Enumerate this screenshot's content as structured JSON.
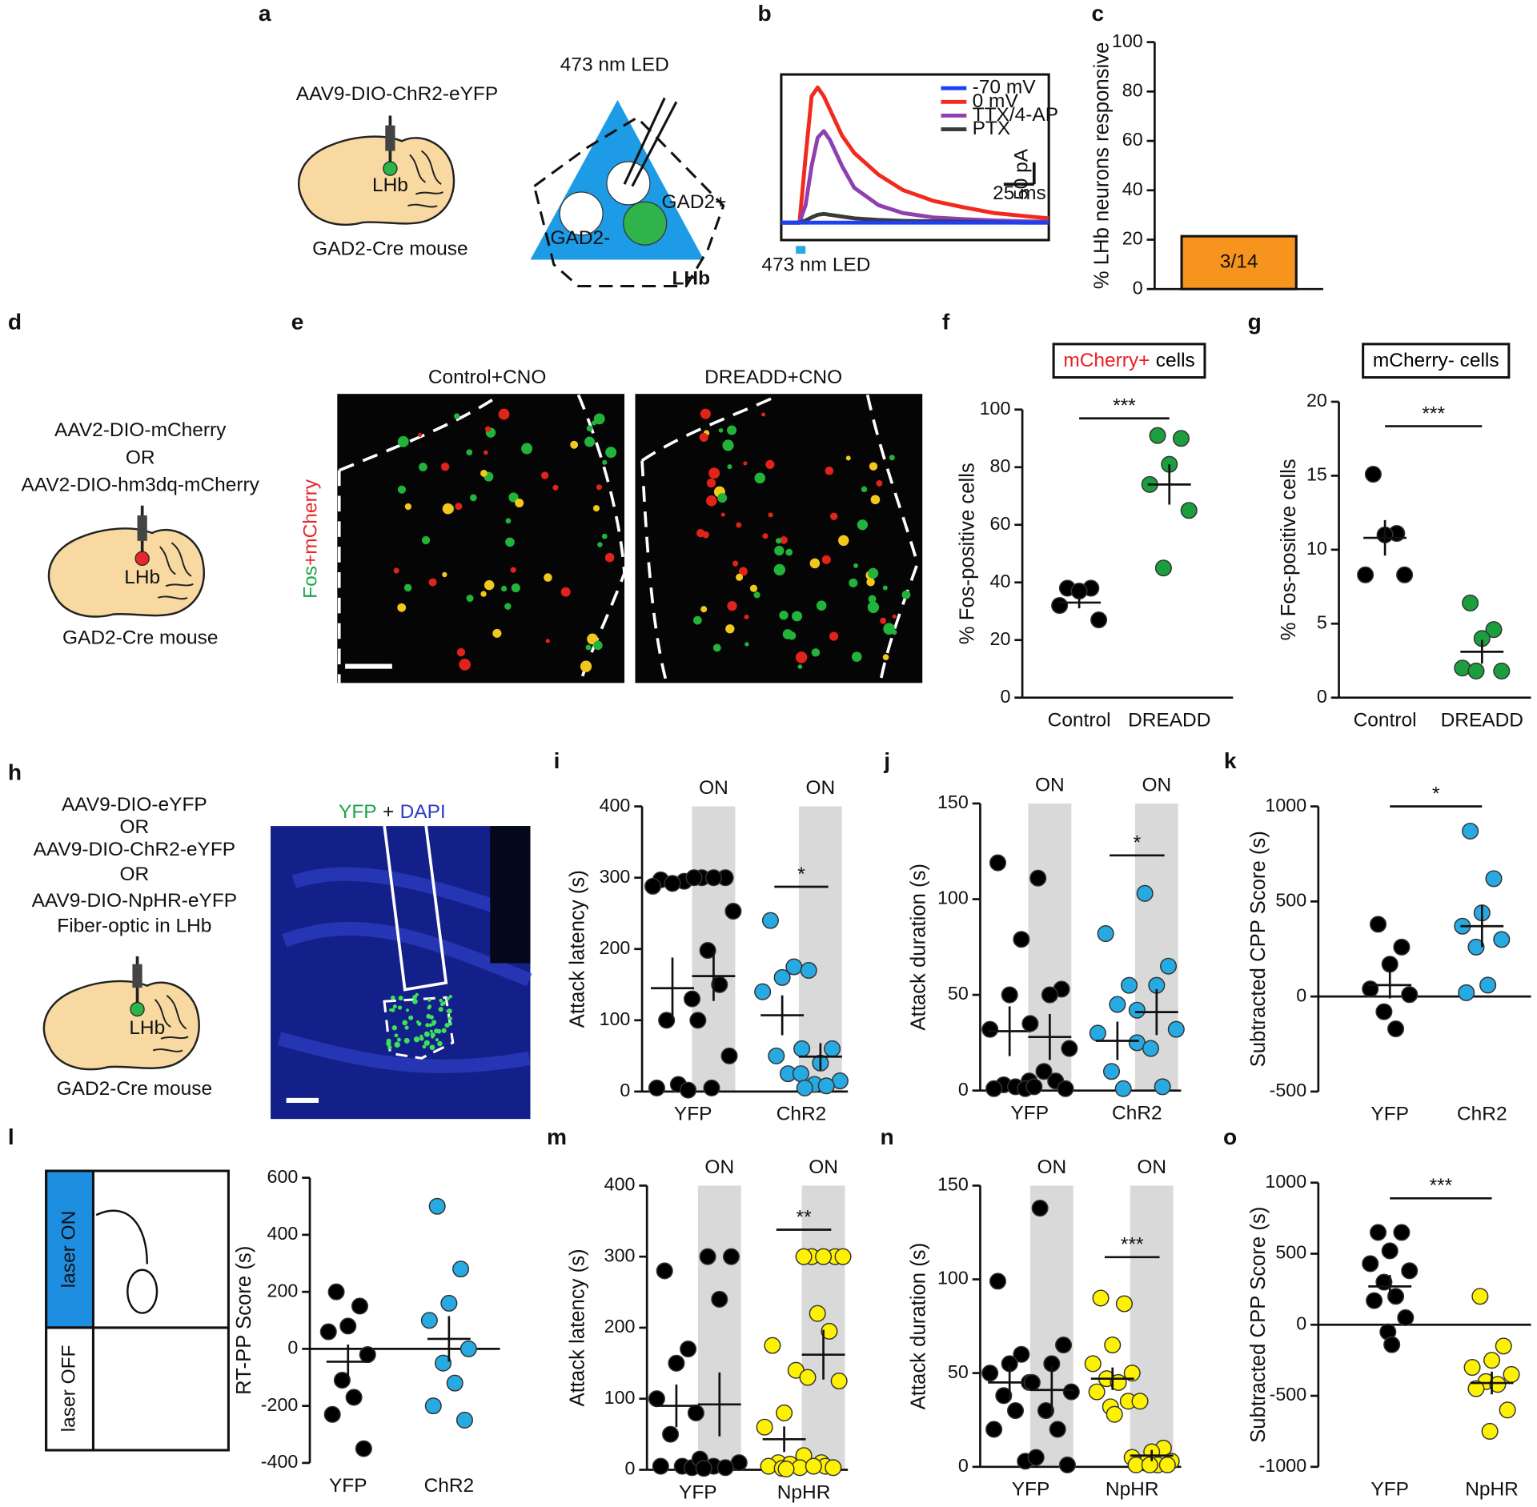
{
  "diagrams": {
    "a": {
      "panel": "a",
      "virus": "AAV9-DIO-ChR2-eYFP",
      "region": "LHb",
      "mouse": "GAD2-Cre mouse",
      "led": "473 nm LED",
      "cell_neg": "GAD2-",
      "cell_pos": "GAD2+",
      "area": "LHb"
    },
    "d": {
      "panel": "d",
      "virus": [
        "AAV2-DIO-mCherry",
        "OR",
        "AAV2-DIO-hm3dq-mCherry"
      ],
      "region": "LHb",
      "mouse": "GAD2-Cre mouse"
    },
    "e": {
      "panel": "e",
      "stain": [
        "Fos",
        "+mCherry"
      ],
      "conditions": [
        "Control+CNO",
        "DREADD+CNO"
      ]
    },
    "h": {
      "panel": "h",
      "virus": [
        "AAV9-DIO-eYFP",
        "OR",
        "AAV9-DIO-ChR2-eYFP",
        "OR",
        "AAV9-DIO-NpHR-eYFP"
      ],
      "fiber": "Fiber-optic in LHb",
      "region": "LHb",
      "mouse": "GAD2-Cre mouse",
      "stain": [
        "YFP",
        "+",
        "DAPI"
      ]
    },
    "l": {
      "on": "laser ON",
      "off": "laser OFF"
    }
  },
  "chart_data": [
    {
      "type": "line",
      "panel": "b",
      "x": [
        0,
        10,
        15,
        20,
        25,
        30,
        35,
        40,
        50,
        60,
        80,
        100,
        125,
        150,
        175,
        200,
        220
      ],
      "xlim": [
        0,
        220
      ],
      "ylim": [
        -40,
        340
      ],
      "legend": "upper right",
      "series": [
        {
          "name": "-70 mV",
          "color": "#1f3ff5",
          "values": [
            0,
            0,
            0,
            0,
            0,
            0,
            0,
            0,
            0,
            0,
            0,
            0,
            0,
            0,
            0,
            0,
            0
          ]
        },
        {
          "name": "0 mV",
          "color": "#f22a1e",
          "values": [
            0,
            0,
            0,
            150,
            290,
            310,
            290,
            260,
            200,
            160,
            110,
            75,
            50,
            35,
            22,
            15,
            10
          ]
        },
        {
          "name": "TTX/4-AP",
          "color": "#8e3fb0",
          "values": [
            0,
            0,
            0,
            40,
            130,
            195,
            210,
            190,
            130,
            80,
            40,
            22,
            12,
            8,
            5,
            3,
            2
          ]
        },
        {
          "name": "PTX",
          "color": "#3a3a3a",
          "values": [
            0,
            0,
            0,
            5,
            12,
            18,
            20,
            18,
            14,
            10,
            6,
            4,
            3,
            2,
            1,
            0,
            0
          ]
        }
      ],
      "scale_bar": {
        "y": {
          "value": 50,
          "label": "50 pA"
        },
        "x": {
          "value": 25,
          "label": "25 ms"
        }
      },
      "led": {
        "label": "473 nm LED",
        "x": [
          12,
          20
        ],
        "color": "#29abe2"
      }
    },
    {
      "type": "bar",
      "panel": "c",
      "ylabel": "% LHb neurons responsive",
      "ylim": [
        0,
        100
      ],
      "yticks": [
        0,
        20,
        40,
        60,
        80,
        100
      ],
      "categories": [
        null
      ],
      "values": [
        21.4
      ],
      "value_labels": [
        "3/14"
      ],
      "color": "#f7941d"
    },
    {
      "type": "dot",
      "panel": "f",
      "title": [
        "mCherry+",
        "cells"
      ],
      "title_colors": [
        "#ee1c24",
        "#000000"
      ],
      "ylabel": "% Fos-positive cells",
      "ylim": [
        0,
        100
      ],
      "yticks": [
        0,
        20,
        40,
        60,
        80,
        100
      ],
      "significance": "***",
      "categories": [
        {
          "label": "Control",
          "groups": [
            {
              "color": "#000000",
              "values": [
                38,
                38,
                37,
                32,
                27
              ],
              "mean": 33,
              "sem": 2
            }
          ]
        },
        {
          "label": "DREADD",
          "groups": [
            {
              "color": "#1b9e3e",
              "values": [
                91,
                90,
                81,
                74,
                65,
                45
              ],
              "mean": 74,
              "sem": 7
            }
          ]
        }
      ]
    },
    {
      "type": "dot",
      "panel": "g",
      "title": [
        "mCherry- cells"
      ],
      "title_colors": [
        "#000000"
      ],
      "ylabel": "% Fos-positive cells",
      "ylim": [
        0,
        20
      ],
      "yticks": [
        0,
        5,
        10,
        15,
        20
      ],
      "significance": "***",
      "categories": [
        {
          "label": "Control",
          "groups": [
            {
              "color": "#000000",
              "values": [
                15.1,
                11.1,
                11.0,
                8.3,
                8.3
              ],
              "mean": 10.8,
              "sem": 1.2
            }
          ]
        },
        {
          "label": "DREADD",
          "groups": [
            {
              "color": "#1b9e3e",
              "values": [
                6.4,
                4.6,
                4.0,
                2.0,
                1.8,
                1.8
              ],
              "mean": 3.1,
              "sem": 0.8
            }
          ]
        }
      ]
    },
    {
      "type": "dot",
      "panel": "i",
      "ylabel": "Attack latency (s)",
      "ylim": [
        0,
        400
      ],
      "yticks": [
        0,
        100,
        200,
        300,
        400
      ],
      "categories": [
        {
          "label": "YFP",
          "groups": [
            {
              "color": "#000000",
              "values": [
                297,
                295,
                292,
                288,
                130,
                100,
                10,
                5,
                2
              ],
              "mean": 145,
              "sem": 43
            },
            {
              "color": "#000000",
              "label": "ON",
              "shaded": true,
              "values": [
                300,
                300,
                300,
                300,
                253,
                198,
                150,
                100,
                50,
                5
              ],
              "mean": 162,
              "sem": 35
            }
          ]
        },
        {
          "label": "ChR2",
          "significance": "*",
          "groups": [
            {
              "color": "#27a9e1",
              "values": [
                240,
                175,
                160,
                140,
                60,
                50,
                25
              ],
              "mean": 107,
              "sem": 28
            },
            {
              "color": "#27a9e1",
              "label": "ON",
              "shaded": true,
              "values": [
                170,
                60,
                40,
                25,
                15,
                10,
                8,
                5
              ],
              "mean": 49,
              "sem": 19
            }
          ]
        }
      ]
    },
    {
      "type": "dot",
      "panel": "j",
      "ylabel": "Attack duration (s)",
      "ylim": [
        0,
        150
      ],
      "yticks": [
        0,
        50,
        100,
        150
      ],
      "categories": [
        {
          "label": "YFP",
          "groups": [
            {
              "color": "#000000",
              "values": [
                119,
                79,
                50,
                32,
                5,
                3,
                2,
                1,
                1
              ],
              "mean": 31,
              "sem": 13
            },
            {
              "color": "#000000",
              "label": "ON",
              "shaded": true,
              "values": [
                111,
                53,
                50,
                35,
                22,
                10,
                5,
                2,
                1
              ],
              "mean": 28,
              "sem": 12
            }
          ]
        },
        {
          "label": "ChR2",
          "significance": "*",
          "groups": [
            {
              "color": "#27a9e1",
              "values": [
                82,
                55,
                45,
                30,
                25,
                10,
                1
              ],
              "mean": 26,
              "sem": 10
            },
            {
              "color": "#27a9e1",
              "label": "ON",
              "shaded": true,
              "values": [
                103,
                65,
                55,
                42,
                32,
                22,
                2
              ],
              "mean": 41,
              "sem": 12
            }
          ]
        }
      ]
    },
    {
      "type": "dot",
      "panel": "k",
      "ylabel": "Subtracted CPP Score (s)",
      "ylim": [
        -500,
        1000
      ],
      "yticks": [
        -500,
        0,
        500,
        1000
      ],
      "zero_line": true,
      "significance": "*",
      "categories": [
        {
          "label": "YFP",
          "groups": [
            {
              "color": "#000000",
              "values": [
                380,
                260,
                170,
                40,
                10,
                -80,
                -170
              ],
              "mean": 60,
              "sem": 70
            }
          ]
        },
        {
          "label": "ChR2",
          "groups": [
            {
              "color": "#27a9e1",
              "values": [
                870,
                620,
                440,
                370,
                300,
                260,
                60,
                20
              ],
              "mean": 370,
              "sem": 110
            }
          ]
        }
      ]
    },
    {
      "type": "dot",
      "panel": "l",
      "ylabel": "RT-PP Score (s)",
      "ylim": [
        -400,
        600
      ],
      "yticks": [
        -400,
        -200,
        0,
        200,
        400,
        600
      ],
      "zero_line": true,
      "categories": [
        {
          "label": "YFP",
          "groups": [
            {
              "color": "#000000",
              "values": [
                200,
                150,
                80,
                60,
                -20,
                -110,
                -170,
                -230,
                -350
              ],
              "mean": -45,
              "sem": 60
            }
          ]
        },
        {
          "label": "ChR2",
          "groups": [
            {
              "color": "#27a9e1",
              "values": [
                500,
                280,
                160,
                100,
                0,
                -50,
                -120,
                -200,
                -250
              ],
              "mean": 35,
              "sem": 80
            }
          ]
        }
      ]
    },
    {
      "type": "dot",
      "panel": "m",
      "ylabel": "Attack latency (s)",
      "ylim": [
        0,
        400
      ],
      "yticks": [
        0,
        100,
        200,
        300,
        400
      ],
      "categories": [
        {
          "label": "YFP",
          "groups": [
            {
              "color": "#000000",
              "values": [
                280,
                170,
                150,
                100,
                80,
                50,
                5,
                5,
                3
              ],
              "mean": 90,
              "sem": 30
            },
            {
              "color": "#000000",
              "label": "ON",
              "shaded": true,
              "values": [
                300,
                300,
                240,
                15,
                10,
                5,
                3,
                2
              ],
              "mean": 92,
              "sem": 45
            }
          ]
        },
        {
          "label": "NpHR",
          "significance": "**",
          "groups": [
            {
              "color": "#fff200",
              "values": [
                175,
                140,
                80,
                60,
                20,
                10,
                8,
                5,
                3,
                2,
                1
              ],
              "mean": 43,
              "sem": 18
            },
            {
              "color": "#fff200",
              "label": "ON",
              "shaded": true,
              "values": [
                300,
                300,
                300,
                300,
                300,
                220,
                195,
                130,
                125,
                10,
                5,
                5,
                3
              ],
              "mean": 162,
              "sem": 35
            }
          ]
        }
      ]
    },
    {
      "type": "dot",
      "panel": "n",
      "ylabel": "Attack duration (s)",
      "ylim": [
        0,
        150
      ],
      "yticks": [
        0,
        50,
        100,
        150
      ],
      "categories": [
        {
          "label": "YFP",
          "groups": [
            {
              "color": "#000000",
              "values": [
                99,
                60,
                55,
                50,
                45,
                38,
                30,
                20,
                3
              ],
              "mean": 45,
              "sem": 9
            },
            {
              "color": "#000000",
              "label": "ON",
              "shaded": true,
              "values": [
                138,
                65,
                55,
                45,
                40,
                30,
                20,
                5,
                1
              ],
              "mean": 41,
              "sem": 13
            }
          ]
        },
        {
          "label": "NpHR",
          "significance": "***",
          "groups": [
            {
              "color": "#fff200",
              "values": [
                90,
                87,
                65,
                55,
                50,
                47,
                45,
                40,
                35,
                32,
                28
              ],
              "mean": 47,
              "sem": 6
            },
            {
              "color": "#fff200",
              "label": "ON",
              "shaded": true,
              "values": [
                35,
                10,
                8,
                5,
                3,
                2,
                1,
                1,
                1,
                1
              ],
              "mean": 6,
              "sem": 3
            }
          ]
        }
      ]
    },
    {
      "type": "dot",
      "panel": "o",
      "ylabel": "Subtracted CPP Score (s)",
      "ylim": [
        -1000,
        1000
      ],
      "yticks": [
        -1000,
        -500,
        0,
        500,
        1000
      ],
      "zero_line": true,
      "significance": "***",
      "categories": [
        {
          "label": "YFP",
          "groups": [
            {
              "color": "#000000",
              "values": [
                650,
                650,
                520,
                430,
                380,
                300,
                200,
                170,
                50,
                -50,
                -140
              ],
              "mean": 270,
              "sem": 80
            }
          ]
        },
        {
          "label": "NpHR",
          "groups": [
            {
              "color": "#fff200",
              "values": [
                200,
                -150,
                -250,
                -300,
                -350,
                -400,
                -420,
                -450,
                -600,
                -750
              ],
              "mean": -410,
              "sem": 80
            }
          ]
        }
      ]
    }
  ]
}
